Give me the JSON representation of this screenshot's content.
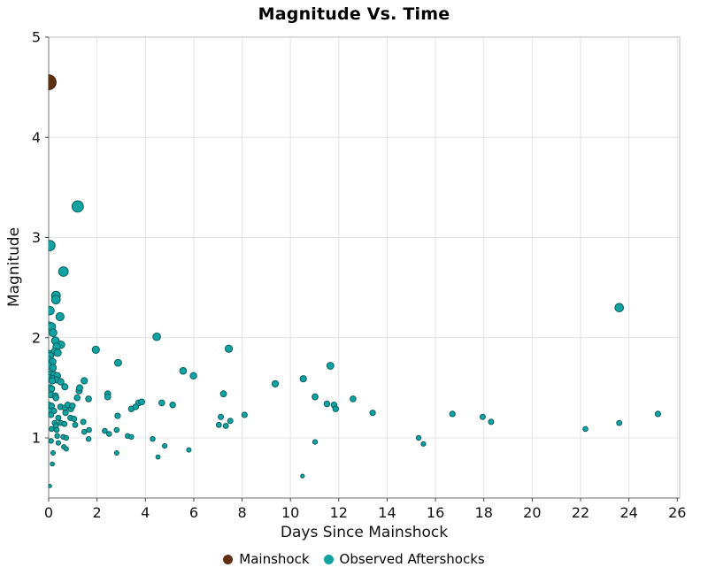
{
  "chart_data": {
    "type": "scatter",
    "title": "Magnitude Vs. Time",
    "xlabel": "Days Since Mainshock",
    "ylabel": "Magnitude",
    "xlim": [
      0,
      26.1
    ],
    "ylim": [
      0.4,
      5.0
    ],
    "xticks": [
      0,
      2,
      4,
      6,
      8,
      10,
      12,
      14,
      16,
      18,
      20,
      22,
      24,
      26
    ],
    "yticks": [
      1,
      2,
      3,
      4,
      5
    ],
    "grid": true,
    "legend_position": "bottom",
    "colors": {
      "mainshock_fill": "#5e2f10",
      "mainshock_stroke": "#3a1d08",
      "aftershock_fill": "#12a2a2",
      "aftershock_stroke": "#085f5f",
      "grid": "#e4e4e4",
      "border": "#bdbdbd",
      "spine": "#8a8a8a",
      "tick": "#444444"
    },
    "legend": [
      {
        "label": "Mainshock",
        "color": "#5e2f10"
      },
      {
        "label": "Observed Aftershocks",
        "color": "#12a2a2"
      }
    ],
    "series": [
      {
        "name": "Mainshock",
        "points": [
          [
            0.0,
            4.55
          ]
        ]
      },
      {
        "name": "Observed Aftershocks",
        "points": [
          [
            0.05,
            2.92
          ],
          [
            0.61,
            2.66
          ],
          [
            0.3,
            2.42
          ],
          [
            0.3,
            2.38
          ],
          [
            0.06,
            2.27
          ],
          [
            0.47,
            2.21
          ],
          [
            0.0,
            2.12
          ],
          [
            0.12,
            2.11
          ],
          [
            0.18,
            2.05
          ],
          [
            0.28,
            1.97
          ],
          [
            0.51,
            1.93
          ],
          [
            0.33,
            1.91
          ],
          [
            0.25,
            1.86
          ],
          [
            0.37,
            1.85
          ],
          [
            0.0,
            1.84
          ],
          [
            0.06,
            1.82
          ],
          [
            0.0,
            1.78
          ],
          [
            0.16,
            1.76
          ],
          [
            0.0,
            1.72
          ],
          [
            0.18,
            1.7
          ],
          [
            0.08,
            1.64
          ],
          [
            0.22,
            1.63
          ],
          [
            0.36,
            1.62
          ],
          [
            0.0,
            1.6
          ],
          [
            0.16,
            1.59
          ],
          [
            0.33,
            1.58
          ],
          [
            0.15,
            1.57
          ],
          [
            0.5,
            1.56
          ],
          [
            0.05,
            1.5
          ],
          [
            0.12,
            1.49
          ],
          [
            0.67,
            1.51
          ],
          [
            0.1,
            1.43
          ],
          [
            0.28,
            1.42
          ],
          [
            0.3,
            1.4
          ],
          [
            0.0,
            1.33
          ],
          [
            0.12,
            1.32
          ],
          [
            0.49,
            1.31
          ],
          [
            0.67,
            1.3
          ],
          [
            0.92,
            1.29
          ],
          [
            0.79,
            1.33
          ],
          [
            0.98,
            1.32
          ],
          [
            0.05,
            1.27
          ],
          [
            0.22,
            1.27
          ],
          [
            0.1,
            1.23
          ],
          [
            0.7,
            1.25
          ],
          [
            0.4,
            1.2
          ],
          [
            0.9,
            1.2
          ],
          [
            1.05,
            1.19
          ],
          [
            0.25,
            1.15
          ],
          [
            0.5,
            1.15
          ],
          [
            0.65,
            1.14
          ],
          [
            0.3,
            1.12
          ],
          [
            1.1,
            1.13
          ],
          [
            0.12,
            1.09
          ],
          [
            0.33,
            1.08
          ],
          [
            0.35,
            1.02
          ],
          [
            0.6,
            1.01
          ],
          [
            0.73,
            1.0
          ],
          [
            0.1,
            0.97
          ],
          [
            0.4,
            0.95
          ],
          [
            0.63,
            0.91
          ],
          [
            0.73,
            0.89
          ],
          [
            0.18,
            0.85
          ],
          [
            0.15,
            0.74
          ],
          [
            0.05,
            0.52
          ],
          [
            1.2,
            3.31
          ],
          [
            1.95,
            1.88
          ],
          [
            1.26,
            1.47
          ],
          [
            1.18,
            1.4
          ],
          [
            1.28,
            1.5
          ],
          [
            1.47,
            1.57
          ],
          [
            1.65,
            1.39
          ],
          [
            1.43,
            1.16
          ],
          [
            1.67,
            1.08
          ],
          [
            1.47,
            1.06
          ],
          [
            1.65,
            0.99
          ],
          [
            2.87,
            1.75
          ],
          [
            2.44,
            1.44
          ],
          [
            2.44,
            1.41
          ],
          [
            2.85,
            1.22
          ],
          [
            2.32,
            1.07
          ],
          [
            2.5,
            1.04
          ],
          [
            2.81,
            1.08
          ],
          [
            3.27,
            1.02
          ],
          [
            3.42,
            1.01
          ],
          [
            3.72,
            1.35
          ],
          [
            3.42,
            1.29
          ],
          [
            3.6,
            1.31
          ],
          [
            2.81,
            0.85
          ],
          [
            4.47,
            2.01
          ],
          [
            4.68,
            1.35
          ],
          [
            5.13,
            1.33
          ],
          [
            3.85,
            1.36
          ],
          [
            5.56,
            1.67
          ],
          [
            5.99,
            1.62
          ],
          [
            4.3,
            0.99
          ],
          [
            4.8,
            0.92
          ],
          [
            5.8,
            0.88
          ],
          [
            4.52,
            0.81
          ],
          [
            7.45,
            1.89
          ],
          [
            7.23,
            1.44
          ],
          [
            7.04,
            1.13
          ],
          [
            7.33,
            1.12
          ],
          [
            7.51,
            1.17
          ],
          [
            7.12,
            1.21
          ],
          [
            8.1,
            1.23
          ],
          [
            9.37,
            1.54
          ],
          [
            10.53,
            1.59
          ],
          [
            11.65,
            1.72
          ],
          [
            11.02,
            1.41
          ],
          [
            11.51,
            1.34
          ],
          [
            11.8,
            1.33
          ],
          [
            11.87,
            1.29
          ],
          [
            11.02,
            0.96
          ],
          [
            10.5,
            0.62
          ],
          [
            12.59,
            1.39
          ],
          [
            13.4,
            1.25
          ],
          [
            15.3,
            1.0
          ],
          [
            15.5,
            0.94
          ],
          [
            16.7,
            1.24
          ],
          [
            17.95,
            1.21
          ],
          [
            18.3,
            1.16
          ],
          [
            22.2,
            1.09
          ],
          [
            23.6,
            2.3
          ],
          [
            23.6,
            1.15
          ],
          [
            25.2,
            1.24
          ]
        ]
      }
    ]
  }
}
